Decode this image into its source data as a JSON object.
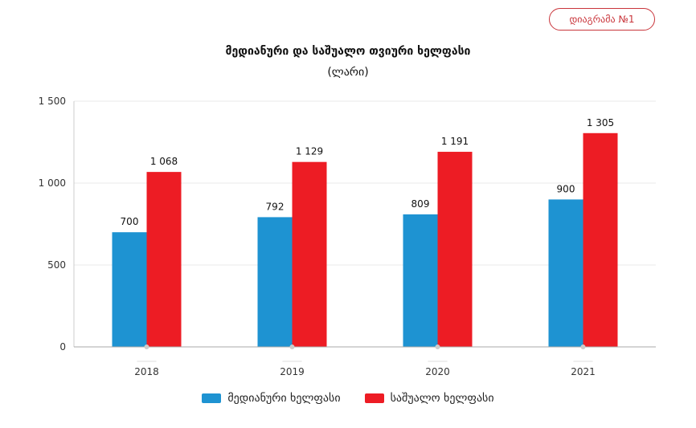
{
  "header": {
    "diagram_button": "დიაგრამა №1"
  },
  "chart_data": {
    "type": "bar",
    "title": "მედიანური და საშუალო თვიური ხელფასი",
    "subtitle": "(ლარი)",
    "categories": [
      "2018",
      "2019",
      "2020",
      "2021"
    ],
    "series": [
      {
        "name": "მედიანური ხელფასი",
        "color": "#1e93d2",
        "values": [
          700,
          792,
          809,
          900
        ],
        "labels": [
          "700",
          "792",
          "809",
          "900"
        ]
      },
      {
        "name": "საშუალო ხელფასი",
        "color": "#ed1c24",
        "values": [
          1068,
          1129,
          1191,
          1305
        ],
        "labels": [
          "1 068",
          "1 129",
          "1 191",
          "1 305"
        ]
      }
    ],
    "ylim": [
      0,
      1500
    ],
    "yticks": [
      0,
      500,
      1000,
      1500
    ],
    "ytick_labels": [
      "0",
      "500",
      "1 000",
      "1 500"
    ],
    "grid": true,
    "legend": "bottom"
  }
}
